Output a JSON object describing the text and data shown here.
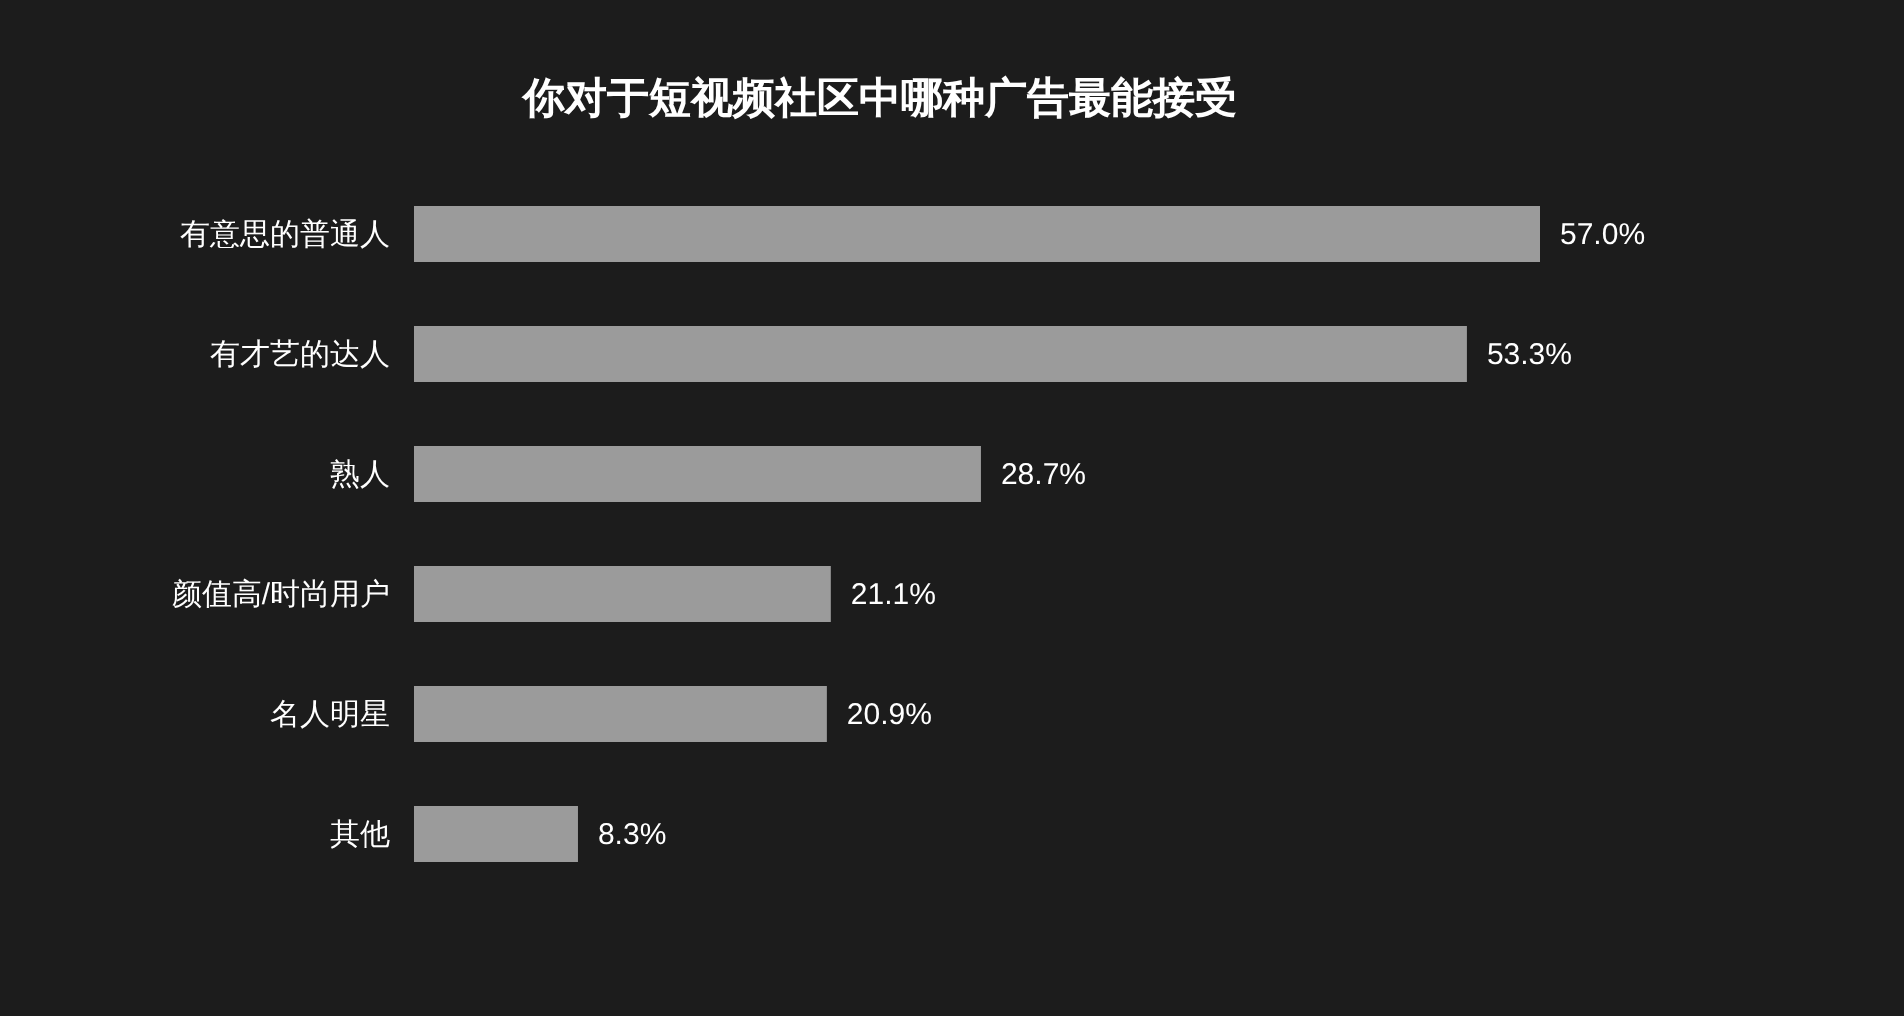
{
  "chart_data": {
    "type": "bar",
    "orientation": "horizontal",
    "title": "你对于短视频社区中哪种广告最能接受",
    "categories": [
      "有意思的普通人",
      "有才艺的达人",
      "熟人",
      "颜值高/时尚用户",
      "名人明星",
      "其他"
    ],
    "values": [
      57.0,
      53.3,
      28.7,
      21.1,
      20.9,
      8.3
    ],
    "value_labels": [
      "57.0%",
      "53.3%",
      "28.7%",
      "21.1%",
      "20.9%",
      "8.3%"
    ],
    "color": "#9b9b9b"
  }
}
